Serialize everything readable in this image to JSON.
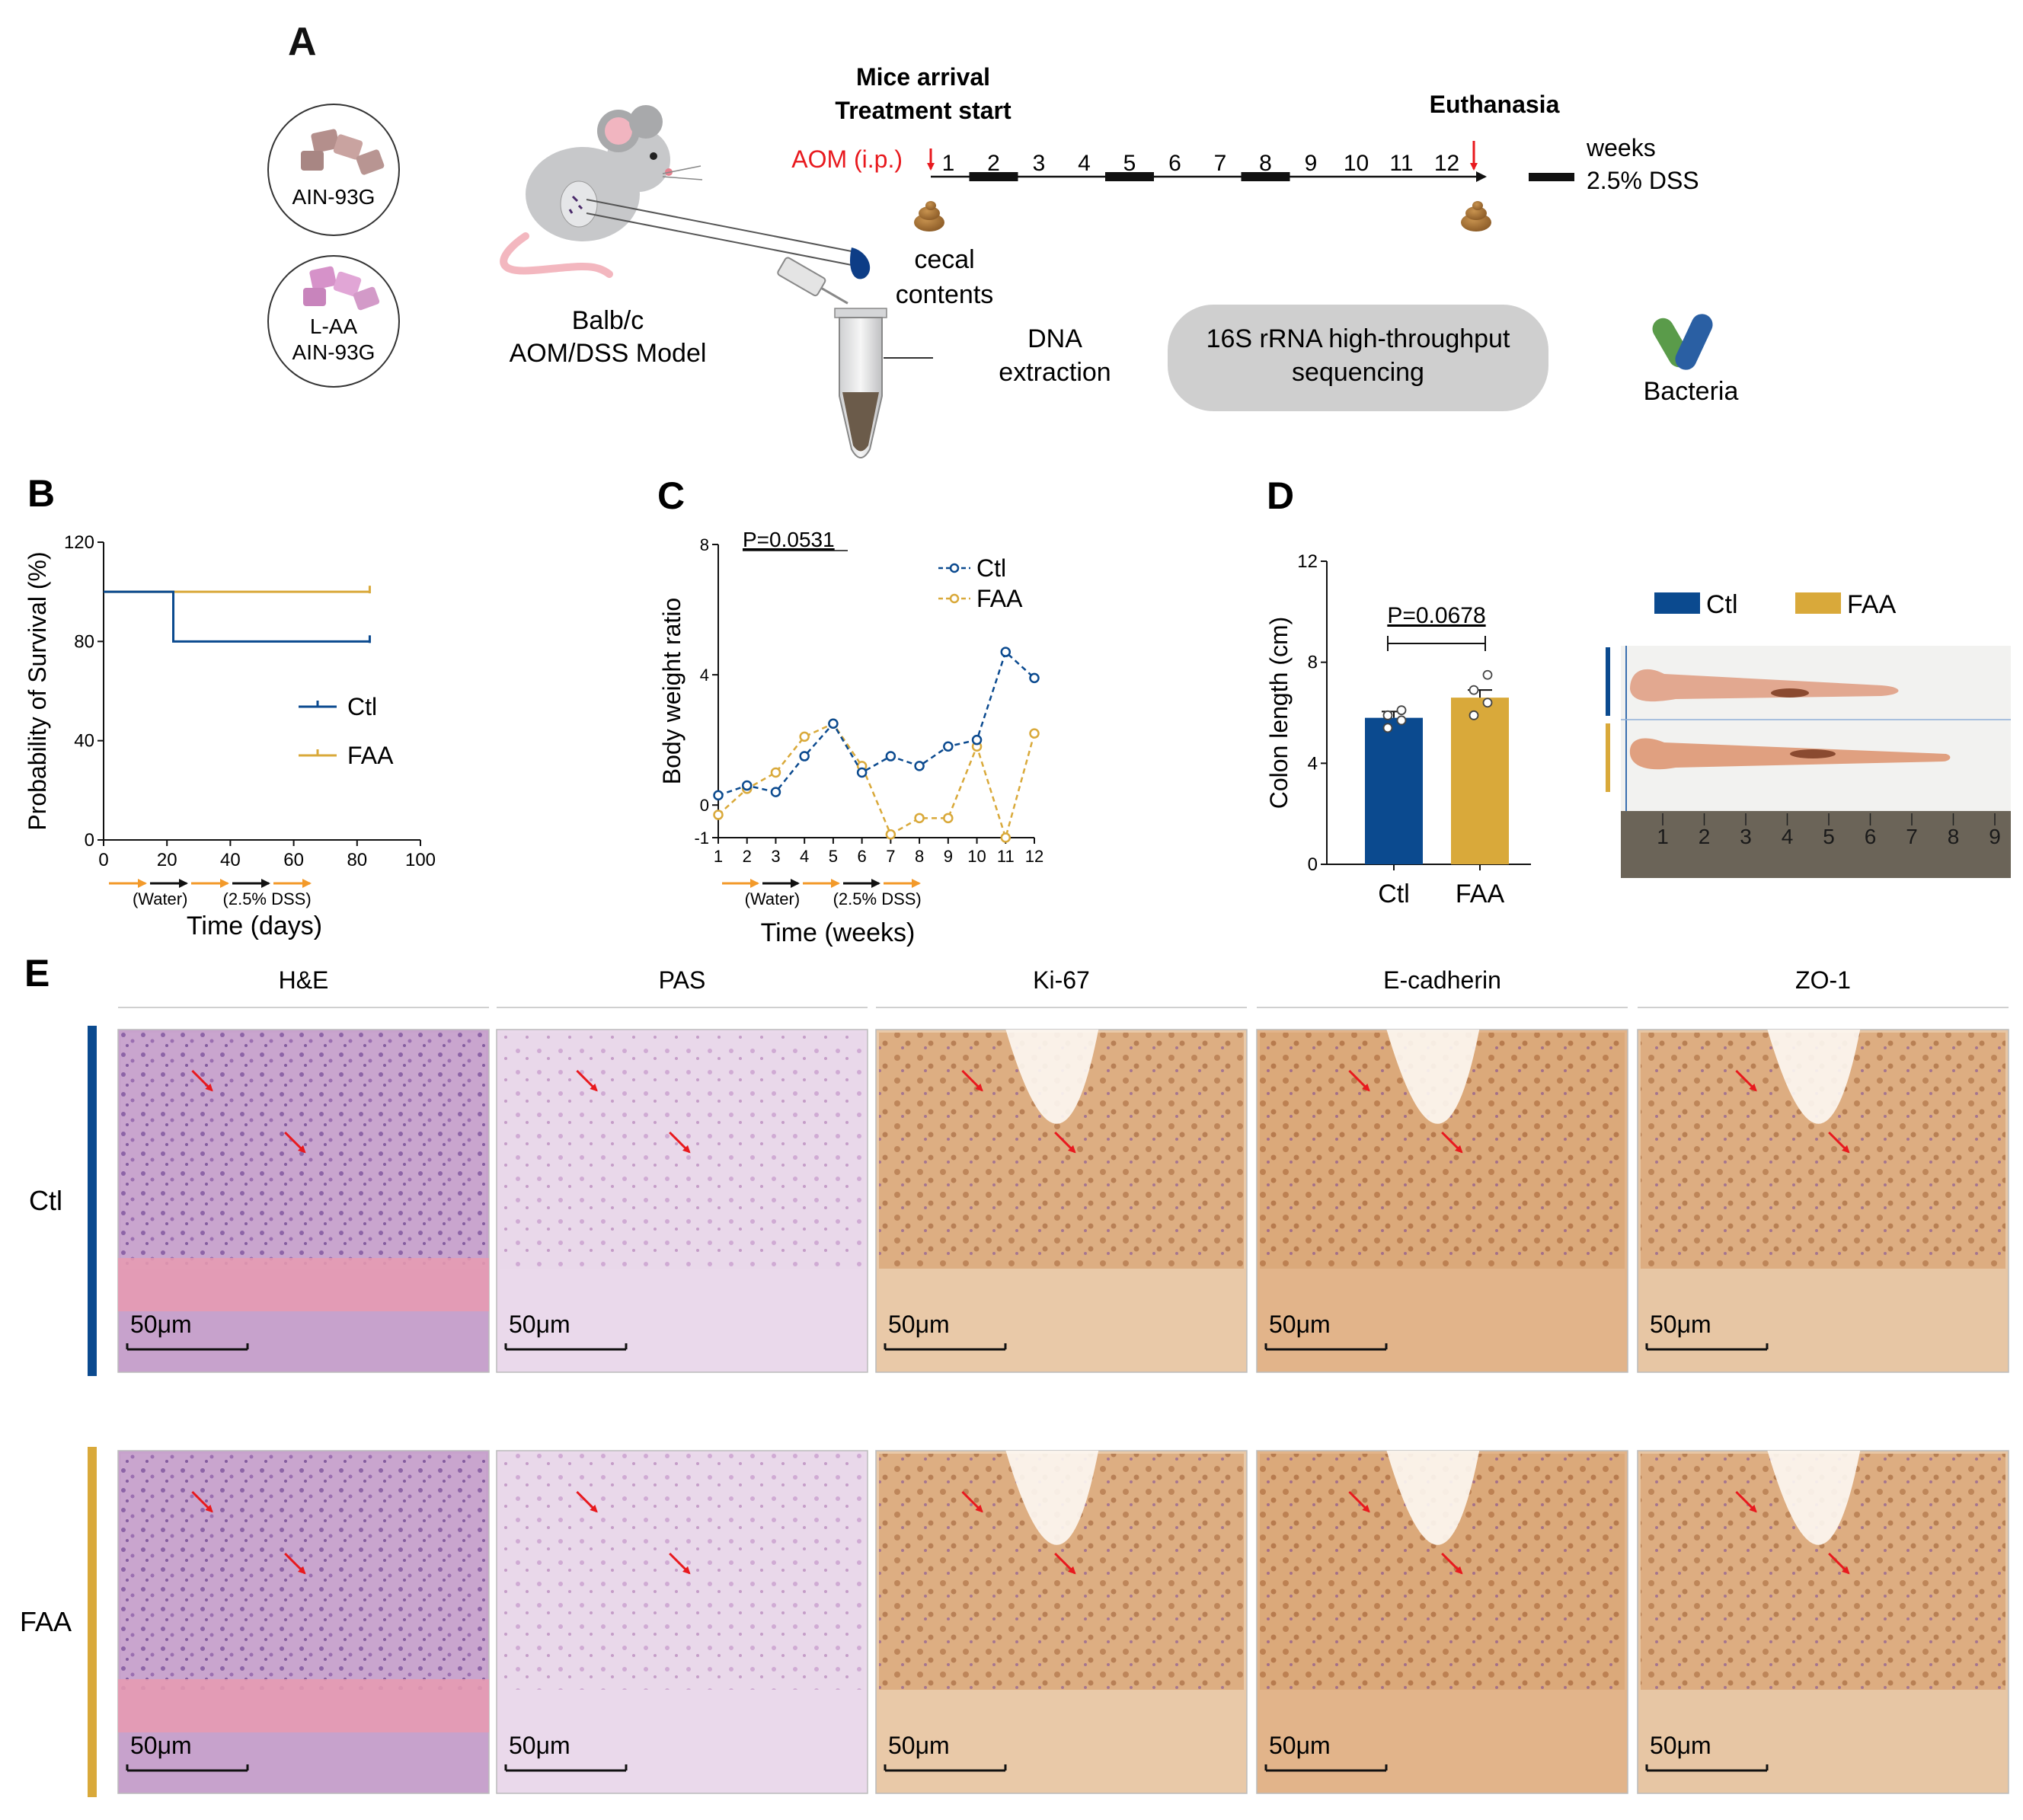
{
  "colors": {
    "ctl": "#0b4a8f",
    "faa": "#d9a93a",
    "red": "#e8191e",
    "dark": "#111111"
  },
  "panelA": {
    "letter": "A",
    "diet1": "AIN-93G",
    "diet2_line1": "L-AA",
    "diet2_line2": "AIN-93G",
    "model_line1": "Balb/c",
    "model_line2": "AOM/DSS Model",
    "arrival_line1": "Mice arrival",
    "arrival_line2": "Treatment start",
    "euthanasia": "Euthanasia",
    "aom": "AOM (i.p.)",
    "week_numbers": [
      "1",
      "2",
      "3",
      "4",
      "5",
      "6",
      "7",
      "8",
      "9",
      "10",
      "11",
      "12"
    ],
    "dss_weeks": [
      2,
      5,
      8
    ],
    "legend_weeks": "weeks",
    "legend_dss": "2.5% DSS",
    "cecal_line1": "cecal",
    "cecal_line2": "contents",
    "dna_line1": "DNA",
    "dna_line2": "extraction",
    "seq_line1": "16S rRNA high-throughput",
    "seq_line2": "sequencing",
    "bacteria": "Bacteria",
    "icons": [
      "diet-pellets-icon",
      "mouse-icon",
      "tube-icon",
      "feces-icon",
      "bacteria-icon"
    ]
  },
  "panelB": {
    "letter": "B",
    "chart_data": {
      "type": "line",
      "subtype": "kaplan-meier",
      "ylabel": "Probability of Survival (%)",
      "xlabel": "Time (days)",
      "xlim": [
        0,
        100
      ],
      "ylim": [
        0,
        120
      ],
      "xticks": [
        "0",
        "20",
        "40",
        "60",
        "80",
        "100"
      ],
      "yticks": [
        "0",
        "40",
        "80",
        "120"
      ],
      "series": [
        {
          "name": "Ctl",
          "steps": [
            [
              0,
              100
            ],
            [
              22,
              100
            ],
            [
              22,
              80
            ],
            [
              84,
              80
            ]
          ]
        },
        {
          "name": "FAA",
          "steps": [
            [
              0,
              100
            ],
            [
              84,
              100
            ]
          ]
        }
      ],
      "legend_position": "right"
    },
    "phase_water": "(Water)",
    "phase_dss": "(2.5% DSS)"
  },
  "panelC": {
    "letter": "C",
    "pvalue": "P=0.0531",
    "chart_data": {
      "type": "line",
      "ylabel": "Body weight ratio",
      "xlabel": "Time (weeks)",
      "x": [
        1,
        2,
        3,
        4,
        5,
        6,
        7,
        8,
        9,
        10,
        11,
        12
      ],
      "xlim": [
        1,
        12
      ],
      "ylim": [
        -1,
        8
      ],
      "yticks": [
        "-1",
        "0",
        "4",
        "8"
      ],
      "series": [
        {
          "name": "Ctl",
          "values": [
            0.3,
            0.6,
            0.4,
            1.5,
            2.5,
            1.0,
            1.5,
            1.2,
            1.8,
            2.0,
            4.7,
            3.9
          ]
        },
        {
          "name": "FAA",
          "values": [
            -0.3,
            0.5,
            1.0,
            2.1,
            2.5,
            1.2,
            -0.9,
            -0.4,
            -0.4,
            1.8,
            -1.0,
            2.2
          ]
        }
      ],
      "legend_position": "top-right"
    },
    "phase_water": "(Water)",
    "phase_dss": "(2.5% DSS)"
  },
  "panelD": {
    "letter": "D",
    "pvalue": "P=0.0678",
    "chart_data": {
      "type": "bar",
      "ylabel": "Colon length (cm)",
      "categories": [
        "Ctl",
        "FAA"
      ],
      "values": [
        5.8,
        6.6
      ],
      "errors": [
        0.25,
        0.3
      ],
      "points": [
        [
          5.4,
          5.7,
          5.9,
          6.1
        ],
        [
          5.9,
          6.4,
          6.9,
          7.5
        ]
      ],
      "ylim": [
        0,
        12
      ],
      "yticks": [
        "0",
        "4",
        "8",
        "12"
      ]
    },
    "legend": [
      "Ctl",
      "FAA"
    ],
    "ruler_numbers": [
      "1",
      "2",
      "3",
      "4",
      "5",
      "6",
      "7",
      "8",
      "9"
    ]
  },
  "panelE": {
    "letter": "E",
    "columns": [
      "H&E",
      "PAS",
      "Ki-67",
      "E-cadherin",
      "ZO-1"
    ],
    "rows": [
      "Ctl",
      "FAA"
    ],
    "scalebar": "50μm"
  }
}
